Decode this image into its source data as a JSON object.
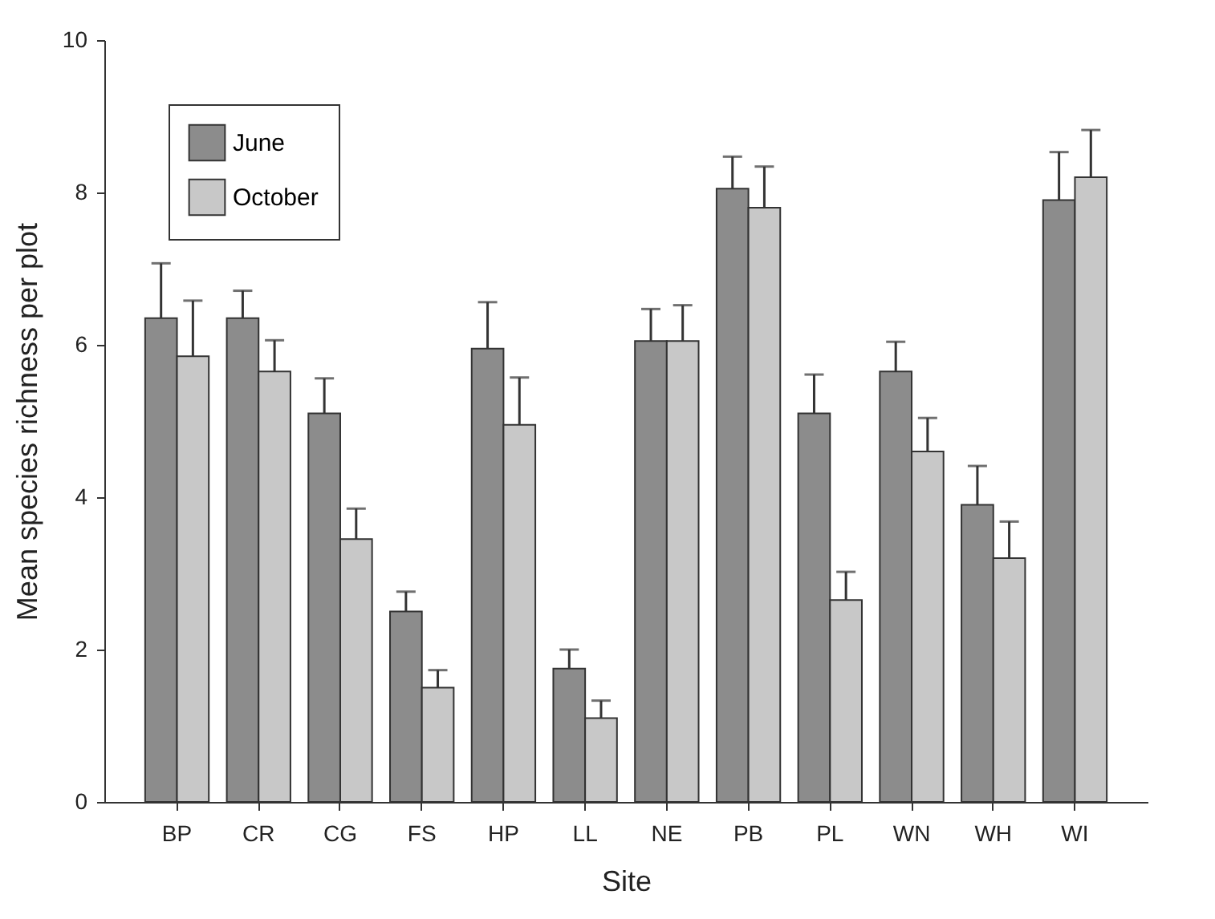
{
  "chart_data": {
    "type": "bar",
    "xlabel": "Site",
    "ylabel": "Mean species richness per plot",
    "categories": [
      "BP",
      "CR",
      "CG",
      "FS",
      "HP",
      "LL",
      "NE",
      "PB",
      "PL",
      "WN",
      "WH",
      "WI"
    ],
    "series": [
      {
        "name": "June",
        "color": "#8c8c8c",
        "values": [
          6.35,
          6.35,
          5.1,
          2.5,
          5.95,
          1.75,
          6.05,
          8.05,
          5.1,
          5.65,
          3.9,
          7.9
        ],
        "errors": [
          [
            6.35,
            7.07
          ],
          [
            6.35,
            6.71
          ],
          [
            5.1,
            5.56
          ],
          [
            2.5,
            2.76
          ],
          [
            5.95,
            6.56
          ],
          [
            1.75,
            2.0
          ],
          [
            6.05,
            6.47
          ],
          [
            8.05,
            8.47
          ],
          [
            5.1,
            5.61
          ],
          [
            5.65,
            6.04
          ],
          [
            3.9,
            4.41
          ],
          [
            7.9,
            8.53
          ]
        ]
      },
      {
        "name": "October",
        "color": "#c8c8c8",
        "values": [
          5.85,
          5.65,
          3.45,
          1.5,
          4.95,
          1.1,
          6.05,
          7.8,
          2.65,
          4.6,
          3.2,
          8.2
        ],
        "errors": [
          [
            5.85,
            6.58
          ],
          [
            5.65,
            6.06
          ],
          [
            3.45,
            3.85
          ],
          [
            1.5,
            1.73
          ],
          [
            4.95,
            5.57
          ],
          [
            1.1,
            1.33
          ],
          [
            6.05,
            6.52
          ],
          [
            7.8,
            8.34
          ],
          [
            2.65,
            3.02
          ],
          [
            4.6,
            5.04
          ],
          [
            3.2,
            3.68
          ],
          [
            8.2,
            8.82
          ]
        ]
      }
    ],
    "ylim": [
      0,
      10
    ],
    "yticks": [
      0,
      2,
      4,
      6,
      8,
      10
    ],
    "legend": "top left"
  }
}
